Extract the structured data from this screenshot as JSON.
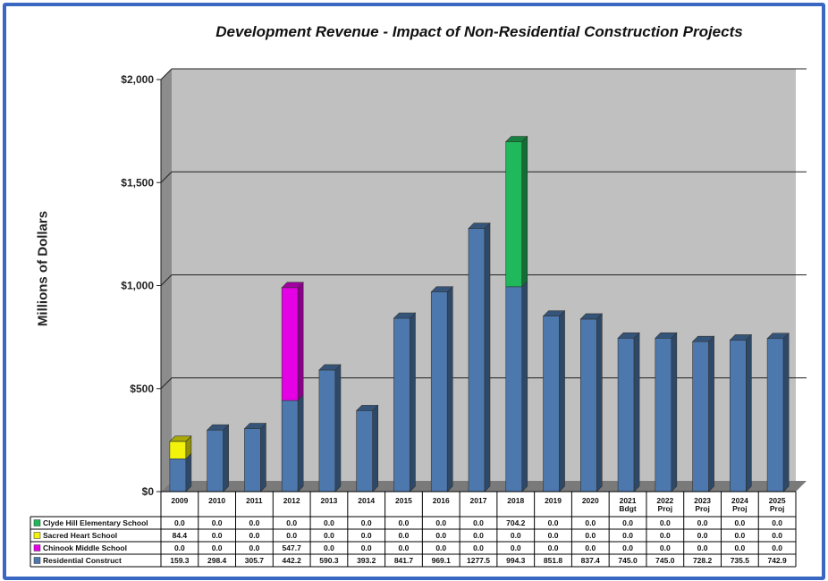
{
  "chart_data": {
    "type": "bar",
    "stacked": true,
    "title": "Development Revenue - Impact of Non-Residential Construction Projects",
    "ylabel": "Millions of Dollars",
    "ylim": [
      0,
      2000
    ],
    "yticks": [
      "$0",
      "$500",
      "$1,000",
      "$1,500",
      "$2,000"
    ],
    "ytick_values": [
      0,
      500,
      1000,
      1500,
      2000
    ],
    "grid": true,
    "categories": [
      [
        "2009"
      ],
      [
        "2010"
      ],
      [
        "2011"
      ],
      [
        "2012"
      ],
      [
        "2013"
      ],
      [
        "2014"
      ],
      [
        "2015"
      ],
      [
        "2016"
      ],
      [
        "2017"
      ],
      [
        "2018"
      ],
      [
        "2019"
      ],
      [
        "2020"
      ],
      [
        "2021",
        "Bdgt"
      ],
      [
        "2022",
        "Proj"
      ],
      [
        "2023",
        "Proj"
      ],
      [
        "2024",
        "Proj"
      ],
      [
        "2025",
        "Proj"
      ]
    ],
    "series": [
      {
        "name": "Residential Construct",
        "color": "#4c78ad",
        "values": [
          159.3,
          298.4,
          305.7,
          442.2,
          590.3,
          393.2,
          841.7,
          969.1,
          1277.5,
          994.3,
          851.8,
          837.4,
          745.0,
          745.0,
          728.2,
          735.5,
          742.9
        ]
      },
      {
        "name": "Chinook Middle School",
        "color": "#e600e6",
        "values": [
          0.0,
          0.0,
          0.0,
          547.7,
          0.0,
          0.0,
          0.0,
          0.0,
          0.0,
          0.0,
          0.0,
          0.0,
          0.0,
          0.0,
          0.0,
          0.0,
          0.0
        ]
      },
      {
        "name": "Sacred Heart School",
        "color": "#f2f20a",
        "values": [
          84.4,
          0.0,
          0.0,
          0.0,
          0.0,
          0.0,
          0.0,
          0.0,
          0.0,
          0.0,
          0.0,
          0.0,
          0.0,
          0.0,
          0.0,
          0.0,
          0.0
        ]
      },
      {
        "name": "Clyde Hill Elementary School",
        "color": "#1fb85a",
        "values": [
          0.0,
          0.0,
          0.0,
          0.0,
          0.0,
          0.0,
          0.0,
          0.0,
          0.0,
          704.2,
          0.0,
          0.0,
          0.0,
          0.0,
          0.0,
          0.0,
          0.0
        ]
      }
    ],
    "table_rows": [
      {
        "name": "Clyde Hill Elementary School",
        "color": "#1fb85a",
        "cells": [
          "0.0",
          "0.0",
          "0.0",
          "0.0",
          "0.0",
          "0.0",
          "0.0",
          "0.0",
          "0.0",
          "704.2",
          "0.0",
          "0.0",
          "0.0",
          "0.0",
          "0.0",
          "0.0",
          "0.0"
        ]
      },
      {
        "name": "Sacred Heart School",
        "color": "#f2f20a",
        "cells": [
          "84.4",
          "0.0",
          "0.0",
          "0.0",
          "0.0",
          "0.0",
          "0.0",
          "0.0",
          "0.0",
          "0.0",
          "0.0",
          "0.0",
          "0.0",
          "0.0",
          "0.0",
          "0.0",
          "0.0"
        ]
      },
      {
        "name": "Chinook Middle School",
        "color": "#e600e6",
        "cells": [
          "0.0",
          "0.0",
          "0.0",
          "547.7",
          "0.0",
          "0.0",
          "0.0",
          "0.0",
          "0.0",
          "0.0",
          "0.0",
          "0.0",
          "0.0",
          "0.0",
          "0.0",
          "0.0",
          "0.0"
        ]
      },
      {
        "name": "Residential Construct",
        "color": "#4c78ad",
        "cells": [
          "159.3",
          "298.4",
          "305.7",
          "442.2",
          "590.3",
          "393.2",
          "841.7",
          "969.1",
          "1277.5",
          "994.3",
          "851.8",
          "837.4",
          "745.0",
          "745.0",
          "728.2",
          "735.5",
          "742.9"
        ]
      }
    ]
  }
}
